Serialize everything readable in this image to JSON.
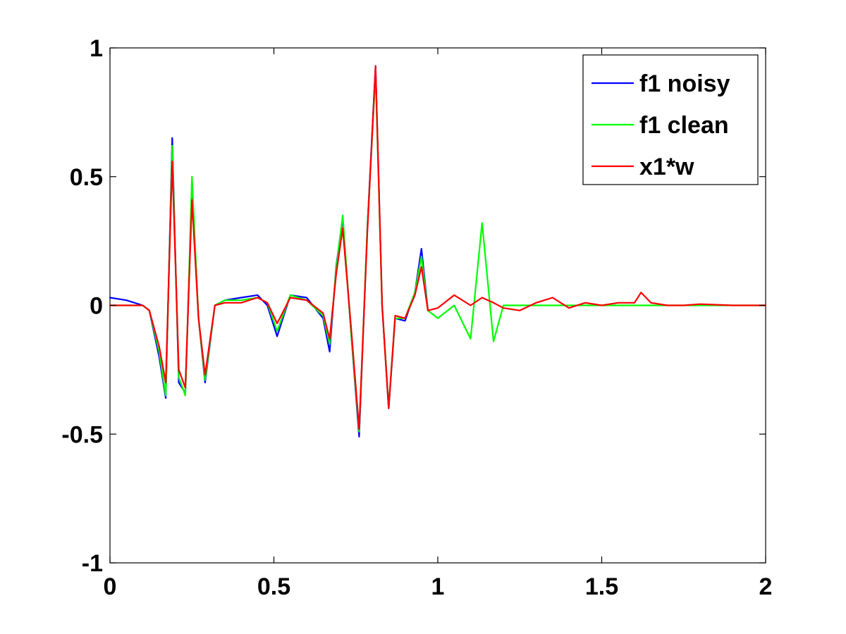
{
  "chart_data": {
    "type": "line",
    "title": "",
    "xlabel": "",
    "ylabel": "",
    "xlim": [
      0,
      2
    ],
    "ylim": [
      -1,
      1
    ],
    "xticks": [
      0,
      0.5,
      1,
      1.5,
      2
    ],
    "xtick_labels": [
      "0",
      "0.5",
      "1",
      "1.5",
      "2"
    ],
    "yticks": [
      -1,
      -0.5,
      0,
      0.5,
      1
    ],
    "ytick_labels": [
      "-1",
      "-0.5",
      "0",
      "0.5",
      "1"
    ],
    "grid": false,
    "legend_position": "top-right",
    "x": [
      0,
      0.05,
      0.1,
      0.12,
      0.15,
      0.17,
      0.19,
      0.21,
      0.23,
      0.25,
      0.27,
      0.29,
      0.32,
      0.35,
      0.4,
      0.45,
      0.48,
      0.51,
      0.55,
      0.6,
      0.65,
      0.67,
      0.69,
      0.71,
      0.735,
      0.76,
      0.785,
      0.81,
      0.83,
      0.85,
      0.87,
      0.9,
      0.93,
      0.95,
      0.97,
      1.0,
      1.05,
      1.1,
      1.135,
      1.17,
      1.2,
      1.25,
      1.3,
      1.35,
      1.4,
      1.45,
      1.5,
      1.55,
      1.6,
      1.62,
      1.65,
      1.7,
      1.75,
      1.8,
      1.9,
      2.0
    ],
    "series": [
      {
        "name": "f1 noisy",
        "color": "#0000ff",
        "values": [
          0.03,
          0.02,
          0.0,
          -0.02,
          -0.2,
          -0.36,
          0.65,
          -0.3,
          -0.34,
          0.45,
          -0.05,
          -0.3,
          0.0,
          0.02,
          0.03,
          0.04,
          0.0,
          -0.12,
          0.04,
          0.03,
          -0.05,
          -0.18,
          0.15,
          0.34,
          -0.1,
          -0.51,
          0.3,
          0.93,
          0.0,
          -0.4,
          -0.05,
          -0.06,
          0.05,
          0.22,
          -0.02,
          null,
          null,
          null,
          null,
          null,
          null,
          null,
          null,
          null,
          null,
          null,
          null,
          null,
          null,
          null,
          null,
          null,
          null,
          null,
          null,
          null
        ]
      },
      {
        "name": "f1 clean",
        "color": "#00ff00",
        "values": [
          0.0,
          0.0,
          0.0,
          -0.02,
          -0.18,
          -0.35,
          0.62,
          -0.28,
          -0.35,
          0.5,
          -0.05,
          -0.29,
          0.0,
          0.02,
          0.02,
          0.03,
          0.01,
          -0.1,
          0.04,
          0.02,
          -0.04,
          -0.15,
          0.14,
          0.35,
          -0.1,
          -0.49,
          0.3,
          0.9,
          0.0,
          -0.39,
          -0.05,
          -0.05,
          0.05,
          0.19,
          -0.02,
          -0.05,
          0.0,
          -0.13,
          0.32,
          -0.14,
          0.0,
          0.0,
          0.0,
          0.0,
          0.0,
          0.0,
          0.0,
          0.0,
          0.0,
          0.0,
          0.0,
          0.0,
          0.0,
          0.0,
          0.0,
          0.0
        ]
      },
      {
        "name": "x1*w",
        "color": "#ff0000",
        "values": [
          0.0,
          0.0,
          0.0,
          -0.02,
          -0.16,
          -0.3,
          0.56,
          -0.25,
          -0.32,
          0.41,
          -0.05,
          -0.27,
          0.0,
          0.01,
          0.01,
          0.03,
          0.01,
          -0.07,
          0.03,
          0.02,
          -0.03,
          -0.13,
          0.12,
          0.3,
          -0.08,
          -0.48,
          0.28,
          0.93,
          0.0,
          -0.4,
          -0.04,
          -0.05,
          0.04,
          0.15,
          -0.02,
          -0.01,
          0.04,
          0.0,
          0.03,
          0.01,
          -0.01,
          -0.02,
          0.01,
          0.03,
          -0.01,
          0.01,
          0.0,
          0.01,
          0.01,
          0.05,
          0.01,
          0.0,
          0.0,
          0.005,
          0.0,
          0.0
        ]
      }
    ]
  }
}
